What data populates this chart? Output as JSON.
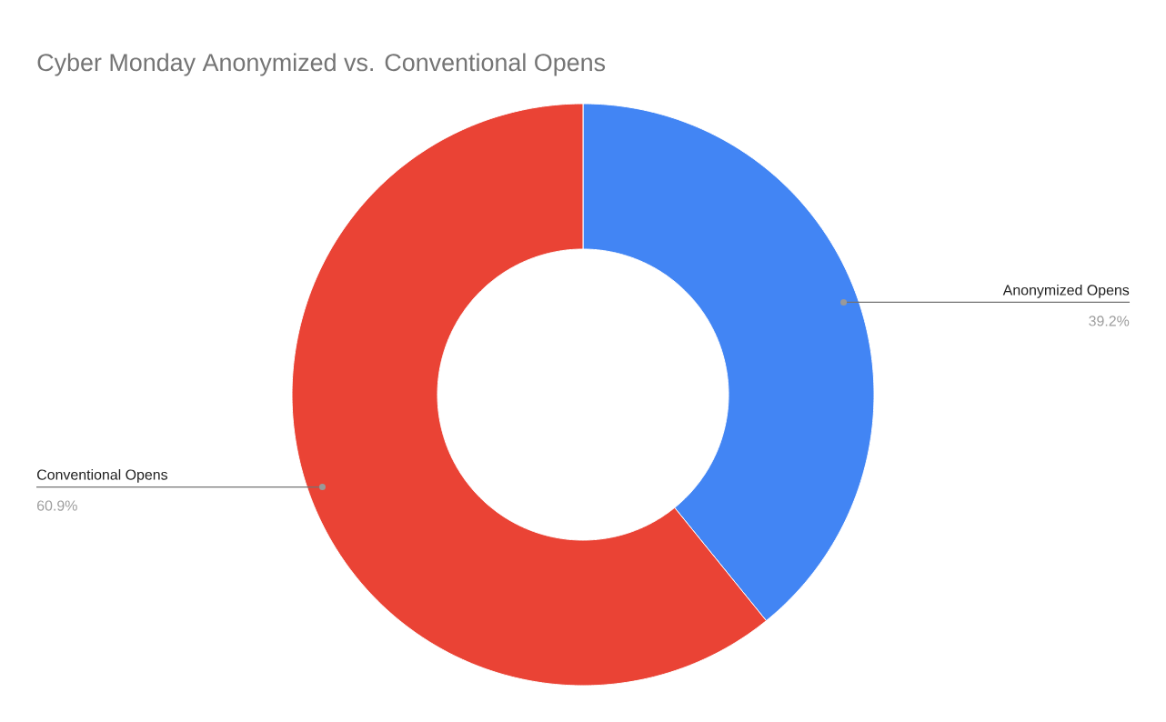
{
  "chart_data": {
    "type": "donut",
    "title": "Cyber Monday Anonymized vs. Conventional Opens",
    "categories": [
      "Anonymized Opens",
      "Conventional Opens"
    ],
    "values": [
      39.2,
      60.9
    ],
    "value_labels": [
      "39.2%",
      "60.9%"
    ],
    "colors": [
      "#4285f4",
      "#ea4335"
    ],
    "legend": false
  }
}
